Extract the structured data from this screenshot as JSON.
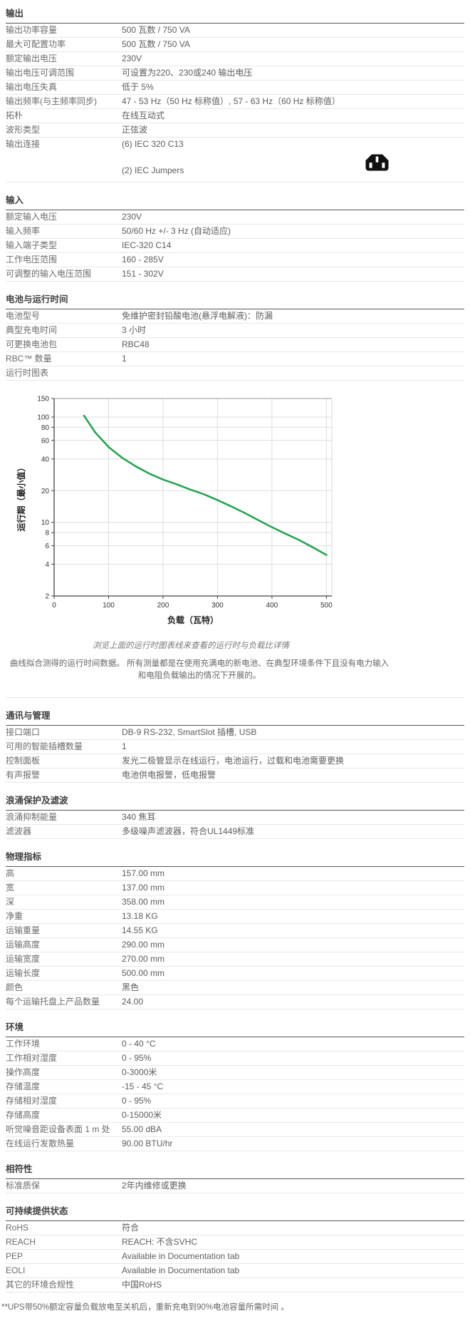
{
  "sections_top": [
    {
      "id": "output",
      "title": "输出",
      "rows": [
        {
          "label": "输出功率容量",
          "value": "500 瓦数 / 750 VA"
        },
        {
          "label": "最大可配置功率",
          "value": "500 瓦数 / 750 VA"
        },
        {
          "label": "额定输出电压",
          "value": "230V"
        },
        {
          "label": "输出电压可调范围",
          "value": "可设置为220、230或240 输出电压"
        },
        {
          "label": "输出电压失真",
          "value": "低于 5%"
        },
        {
          "label": "输出频率(与主频率同步)",
          "value": "47 - 53 Hz（50 Hz 标称值）, 57 - 63 Hz（60 Hz 标称值）"
        },
        {
          "label": "拓朴",
          "value": "在线互动式"
        },
        {
          "label": "波形类型",
          "value": "正弦波"
        },
        {
          "label": "输出连接",
          "value": "(6) IEC 320 C13",
          "value2": "(2) IEC Jumpers",
          "icon": "iec-c13-outlet-icon"
        }
      ]
    },
    {
      "id": "input",
      "title": "输入",
      "rows": [
        {
          "label": "额定输入电压",
          "value": "230V"
        },
        {
          "label": "输入频率",
          "value": "50/60 Hz +/- 3 Hz (自动适应)"
        },
        {
          "label": "输入端子类型",
          "value": "IEC-320 C14"
        },
        {
          "label": "工作电压范围",
          "value": "160 - 285V"
        },
        {
          "label": "可调整的输入电压范围",
          "value": "151 - 302V"
        }
      ]
    },
    {
      "id": "battery-runtime",
      "title": "电池与运行时间",
      "rows": [
        {
          "label": "电池型号",
          "value": "免维护密封铅酸电池(悬浮电解液)：防漏"
        },
        {
          "label": "典型充电时间",
          "value": "3 小时"
        },
        {
          "label": "可更换电池包",
          "value": "RBC48"
        },
        {
          "label": "RBC™ 数量",
          "value": "1"
        },
        {
          "label": "运行时图表",
          "value": ""
        }
      ]
    }
  ],
  "chart_data": {
    "type": "line",
    "title": "运行时图表",
    "xlabel": "负载（瓦特）",
    "ylabel": "运行期（最小值）",
    "x_ticks": [
      0,
      100,
      200,
      300,
      400,
      500
    ],
    "y_ticks": [
      150,
      100,
      80,
      60,
      40,
      20,
      10,
      8,
      6,
      4,
      2
    ],
    "y_scale": "log",
    "xlim": [
      0,
      510
    ],
    "ylim": [
      2,
      150
    ],
    "grid": true,
    "line_color": "#28a352",
    "series": [
      {
        "name": "runtime-vs-load",
        "x": [
          55,
          75,
          100,
          125,
          150,
          175,
          200,
          225,
          250,
          275,
          300,
          325,
          350,
          375,
          400,
          425,
          450,
          475,
          500
        ],
        "y": [
          103,
          72,
          52,
          41,
          34,
          29,
          25.5,
          23,
          20.5,
          18.5,
          16.3,
          14.2,
          12.3,
          10.5,
          9.0,
          7.8,
          6.8,
          5.8,
          4.9
        ]
      }
    ]
  },
  "chart_text": {
    "caption": "浏览上面的运行时图表线来查看的运行时与负载比详情",
    "note_line1": "曲线拟合测得的运行时间数据。 所有测量都是在使用充满电的新电池、在典型环境条件下且没有电力输入",
    "note_line2": "和电阻负载输出的情况下开展的。"
  },
  "sections_bottom": [
    {
      "id": "communications-management",
      "title": "通讯与管理",
      "rows": [
        {
          "label": "接口端口",
          "value": "DB-9 RS-232, SmartSlot 插槽, USB"
        },
        {
          "label": "可用的智能插槽数量",
          "value": "1"
        },
        {
          "label": "控制面板",
          "value": "发光二极管显示在线运行，电池运行，过载和电池需要更换"
        },
        {
          "label": "有声报警",
          "value": "电池供电报警，低电报警"
        }
      ]
    },
    {
      "id": "surge-filtering",
      "title": "浪涌保护及滤波",
      "rows": [
        {
          "label": "浪涌抑制能量",
          "value": "340 焦耳"
        },
        {
          "label": "滤波器",
          "value": "多级噪声滤波器，符合UL1449标准"
        }
      ]
    },
    {
      "id": "physical",
      "title": "物理指标",
      "rows": [
        {
          "label": "高",
          "value": "157.00 mm"
        },
        {
          "label": "宽",
          "value": "137.00 mm"
        },
        {
          "label": "深",
          "value": "358.00 mm"
        },
        {
          "label": "净重",
          "value": "13.18 KG"
        },
        {
          "label": "运输重量",
          "value": "14.55 KG"
        },
        {
          "label": "运输高度",
          "value": "290.00 mm"
        },
        {
          "label": "运输宽度",
          "value": "270.00 mm"
        },
        {
          "label": "运输长度",
          "value": "500.00 mm"
        },
        {
          "label": "颜色",
          "value": "黑色"
        },
        {
          "label": "每个运输托盘上产品数量",
          "value": "24.00"
        }
      ]
    },
    {
      "id": "environment",
      "title": "环境",
      "rows": [
        {
          "label": "工作环境",
          "value": "0 - 40 °C"
        },
        {
          "label": "工作相对湿度",
          "value": "0 - 95%"
        },
        {
          "label": "操作高度",
          "value": "0-3000米"
        },
        {
          "label": "存储温度",
          "value": "-15 - 45 °C"
        },
        {
          "label": "存储相对湿度",
          "value": "0 - 95%"
        },
        {
          "label": "存储高度",
          "value": "0-15000米"
        },
        {
          "label": "听觉噪音距设备表面 1 m 处",
          "value": "55.00 dBA"
        },
        {
          "label": "在线运行发散热量",
          "value": "90.00 BTU/hr"
        }
      ]
    },
    {
      "id": "conformance",
      "title": "相符性",
      "rows": [
        {
          "label": "标准质保",
          "value": "2年内维修或更换"
        }
      ]
    },
    {
      "id": "sustainability",
      "title": "可持续提供状态",
      "rows": [
        {
          "label": "RoHS",
          "value": "符合"
        },
        {
          "label": "REACH",
          "value": "REACH: 不含SVHC"
        },
        {
          "label": "PEP",
          "value": "Available in Documentation tab"
        },
        {
          "label": "EOLI",
          "value": "Available in Documentation tab"
        },
        {
          "label": "其它的环境合规性",
          "value": "中国RoHS"
        }
      ]
    }
  ],
  "footnote": "**UPS带50%额定容量负载放电至关机后，重新充电到90%电池容量所需时间 。"
}
